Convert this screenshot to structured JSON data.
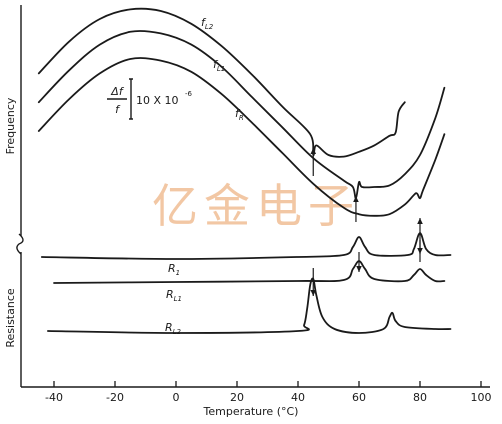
{
  "chart_data": [
    {
      "type": "line",
      "panel": "frequency",
      "ylabel": "Frequency",
      "scale_label": {
        "numerator": "Δf",
        "denominator": "f",
        "value": "10 X 10",
        "exponent": "-6"
      },
      "series": [
        {
          "name": "fL2",
          "label_main": "f",
          "label_sub": "L2",
          "x": [
            -45,
            -35,
            -25,
            -15,
            -5,
            5,
            15,
            25,
            35,
            44,
            45,
            46,
            50,
            55,
            60,
            65,
            70,
            72,
            73,
            75
          ],
          "y": [
            10.1,
            12.1,
            13.5,
            14.1,
            14.0,
            13.2,
            11.8,
            10.0,
            8.0,
            6.3,
            5.0,
            5.6,
            5.0,
            4.9,
            5.2,
            5.6,
            6.2,
            6.4,
            7.7,
            8.3
          ]
        },
        {
          "name": "fL1",
          "label_main": "f",
          "label_sub": "L1",
          "x": [
            -45,
            -35,
            -25,
            -15,
            -5,
            5,
            15,
            25,
            35,
            45,
            55,
            58,
            59,
            60,
            61,
            65,
            70,
            75,
            80,
            85,
            88
          ],
          "y": [
            8.3,
            10.3,
            11.9,
            12.7,
            12.6,
            11.9,
            10.5,
            8.6,
            6.7,
            4.8,
            3.4,
            3.0,
            2.3,
            3.3,
            3.0,
            3.0,
            3.1,
            3.8,
            5.0,
            7.3,
            9.2
          ]
        },
        {
          "name": "fR",
          "label_main": "f",
          "label_sub": "R",
          "x": [
            -45,
            -35,
            -25,
            -15,
            -5,
            5,
            15,
            25,
            35,
            45,
            55,
            60,
            65,
            70,
            75,
            78,
            79,
            80,
            81,
            85,
            88
          ],
          "y": [
            6.5,
            8.5,
            10.1,
            11.0,
            10.9,
            10.2,
            8.8,
            7.0,
            5.1,
            3.2,
            1.7,
            1.3,
            1.2,
            1.3,
            1.9,
            2.5,
            2.6,
            2.3,
            2.8,
            4.7,
            6.3
          ]
        }
      ],
      "arrows": [
        {
          "x": 45,
          "direction": "up"
        },
        {
          "x": 59,
          "direction": "up"
        },
        {
          "x": 80,
          "direction": "up"
        }
      ]
    },
    {
      "type": "line",
      "panel": "resistance",
      "ylabel": "Resistance",
      "xlabel": "Temperature (°C)",
      "xlim": [
        -48,
        100
      ],
      "xticks": [
        -40,
        -20,
        0,
        20,
        40,
        60,
        80,
        100
      ],
      "xtick_labels": [
        "-40",
        "-20",
        "0",
        "20",
        "40",
        "60",
        "80",
        "100"
      ],
      "series": [
        {
          "name": "R1",
          "label_main": "R",
          "label_sub": "1",
          "x": [
            -44,
            0,
            40,
            55,
            58,
            60,
            62,
            65,
            76,
            78,
            80,
            82,
            85,
            90
          ],
          "y": [
            1.4,
            1.3,
            1.4,
            1.5,
            1.9,
            2.4,
            1.9,
            1.5,
            1.5,
            1.8,
            2.6,
            1.8,
            1.5,
            1.5
          ]
        },
        {
          "name": "RL1",
          "label_main": "R",
          "label_sub": "L1",
          "x": [
            -40,
            0,
            40,
            55,
            58,
            60,
            62,
            65,
            75,
            78,
            80,
            82,
            85,
            88
          ],
          "y": [
            0.1,
            0.15,
            0.2,
            0.25,
            0.8,
            1.2,
            0.8,
            0.3,
            0.2,
            0.5,
            0.8,
            0.5,
            0.2,
            0.2
          ]
        },
        {
          "name": "RL2",
          "label_main": "R",
          "label_sub": "L2",
          "x": [
            -42,
            0,
            40,
            42,
            43,
            44,
            45,
            46,
            48,
            52,
            60,
            68,
            70,
            71,
            72,
            75,
            85,
            90
          ],
          "y": [
            -2.3,
            -2.4,
            -2.3,
            -2.0,
            -1.2,
            0.0,
            0.3,
            -0.5,
            -1.6,
            -2.2,
            -2.4,
            -2.2,
            -1.6,
            -1.4,
            -1.8,
            -2.1,
            -2.2,
            -2.2
          ]
        }
      ],
      "arrows": [
        {
          "x": 45,
          "direction": "down"
        },
        {
          "x": 60,
          "direction": "down"
        },
        {
          "x": 80,
          "direction": "down"
        }
      ]
    }
  ],
  "watermark": "亿金电子"
}
